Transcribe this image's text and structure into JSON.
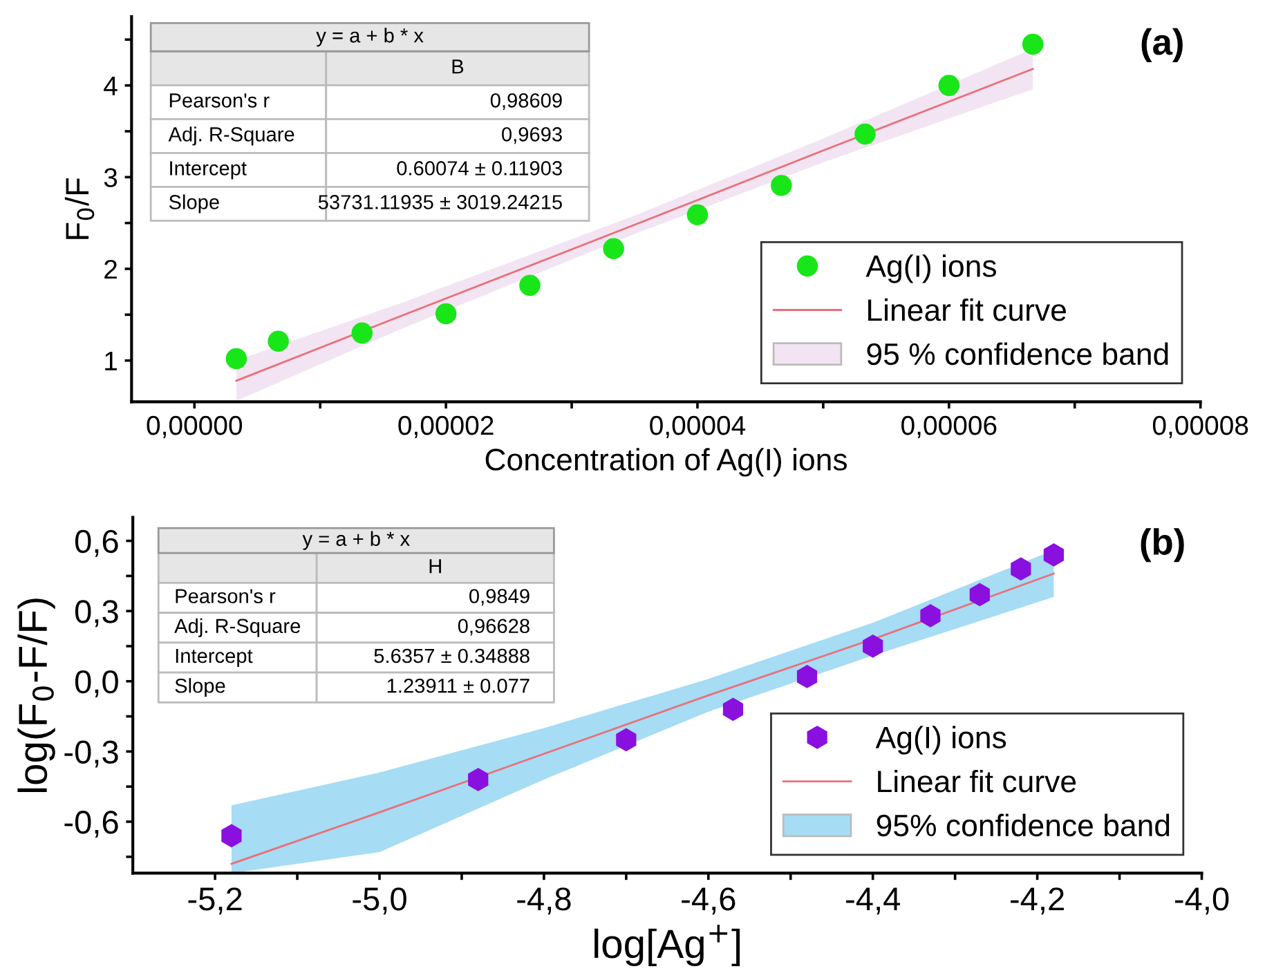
{
  "chart_data": [
    {
      "type": "scatter",
      "xlabel": "Concentration of Ag(I) ions",
      "ylabel": "F$_{0}$/F",
      "annotations": [
        "(a)",
        "y = a + b * x",
        "B",
        "Pearson's r",
        "0,98609",
        "Adj. R-Square",
        "0,9693",
        "Intercept",
        "0.60074 ± 0.11903",
        "Slope",
        "53731.11935 ± 3019.24215"
      ],
      "xlim": [
        -5e-06,
        8e-05
      ],
      "ylim": [
        0.55,
        4.75
      ],
      "xticks": [
        {
          "value": 0,
          "label": "0,00000"
        },
        {
          "value": 1e-05,
          "label": null
        },
        {
          "value": 2e-05,
          "label": "0,00002"
        },
        {
          "value": 3e-05,
          "label": null
        },
        {
          "value": 4e-05,
          "label": "0,00004"
        },
        {
          "value": 5e-05,
          "label": null
        },
        {
          "value": 6e-05,
          "label": "0,00006"
        },
        {
          "value": 7e-05,
          "label": null
        },
        {
          "value": 8e-05,
          "label": "0,00008"
        }
      ],
      "yticks": [
        1,
        {
          "value": 1.5,
          "label": null
        },
        2,
        {
          "value": 2.5,
          "label": null
        },
        3,
        {
          "value": 3.5,
          "label": null
        },
        4,
        {
          "value": 4.5,
          "label": null
        }
      ],
      "legend": "bottom right",
      "series": [
        {
          "type": "area",
          "name": "95 % confidence band",
          "color": "#f2e4f2"
        },
        {
          "type": "line",
          "name": "Linear fit curve",
          "color": "#e8707a",
          "line_style": "solid",
          "x": [
            3.33e-06,
            1.67e-05,
            3.5e-05,
            5e-05,
            6.667e-05
          ],
          "values": [
            0.78,
            1.5,
            2.48,
            3.29,
            4.18
          ],
          "lower": [
            0.56,
            1.36,
            2.38,
            3.16,
            3.96
          ],
          "upper": [
            1.0,
            1.64,
            2.58,
            3.42,
            4.4
          ]
        },
        {
          "type": "scatter",
          "name": "Ag(I) ions",
          "color": "#19e619",
          "marker": "circle",
          "x": [
            3.33e-06,
            6.67e-06,
            1.333e-05,
            2e-05,
            2.667e-05,
            3.333e-05,
            4e-05,
            4.667e-05,
            5.333e-05,
            6e-05,
            6.667e-05
          ],
          "values": [
            1.02,
            1.21,
            1.3,
            1.51,
            1.82,
            2.22,
            2.59,
            2.91,
            3.47,
            4.0,
            4.45
          ]
        }
      ]
    },
    {
      "type": "scatter",
      "xlabel": "log[Ag$^{+}$]",
      "ylabel": "log(F$_{0}$-F/F)",
      "annotations": [
        "(b)",
        "y = a + b * x",
        "H",
        "Pearson's r",
        "0,9849",
        "Adj. R-Square",
        "0,96628",
        "Intercept",
        "5.6357 ± 0.34888",
        "Slope",
        "1.23911 ± 0.077"
      ],
      "xlim": [
        -5.3,
        -4.0
      ],
      "ylim": [
        -0.82,
        0.7
      ],
      "xticks": [
        {
          "value": -5.2,
          "label": "-5,2"
        },
        {
          "value": -5.1,
          "label": null
        },
        {
          "value": -5.0,
          "label": "-5,0"
        },
        {
          "value": -4.9,
          "label": null
        },
        {
          "value": -4.8,
          "label": "-4,8"
        },
        {
          "value": -4.7,
          "label": null
        },
        {
          "value": -4.6,
          "label": "-4,6"
        },
        {
          "value": -4.5,
          "label": null
        },
        {
          "value": -4.4,
          "label": "-4,4"
        },
        {
          "value": -4.3,
          "label": null
        },
        {
          "value": -4.2,
          "label": "-4,2"
        },
        {
          "value": -4.1,
          "label": null
        },
        {
          "value": -4.0,
          "label": "-4,0"
        }
      ],
      "yticks": [
        {
          "value": -0.75,
          "label": null
        },
        {
          "value": -0.6,
          "label": "-0,6"
        },
        {
          "value": -0.45,
          "label": null
        },
        {
          "value": -0.3,
          "label": "-0,3"
        },
        {
          "value": -0.15,
          "label": null
        },
        {
          "value": 0.0,
          "label": "0,0"
        },
        {
          "value": 0.15,
          "label": null
        },
        {
          "value": 0.3,
          "label": "0,3"
        },
        {
          "value": 0.45,
          "label": null
        },
        {
          "value": 0.6,
          "label": "0,6"
        }
      ],
      "legend": "bottom right",
      "series": [
        {
          "type": "area",
          "name": "95% confidence band",
          "color": "#a6dcf4"
        },
        {
          "type": "line",
          "name": "Linear fit curve",
          "color": "#e8707a",
          "line_style": "solid",
          "x": [
            -5.18,
            -5.0,
            -4.8,
            -4.6,
            -4.4,
            -4.18
          ],
          "values": [
            -0.78,
            -0.56,
            -0.31,
            -0.06,
            0.18,
            0.46
          ],
          "lower": [
            -0.82,
            -0.73,
            -0.42,
            -0.13,
            0.11,
            0.36
          ],
          "upper": [
            -0.53,
            -0.39,
            -0.2,
            0.01,
            0.25,
            0.56
          ]
        },
        {
          "type": "scatter",
          "name": "Ag(I) ions",
          "color": "#8a10e0",
          "x": [
            -5.18,
            -4.88,
            -4.7,
            -4.57,
            -4.48,
            -4.4,
            -4.33,
            -4.27,
            -4.22,
            -4.18
          ],
          "values": [
            -0.66,
            -0.42,
            -0.25,
            -0.12,
            0.02,
            0.15,
            0.28,
            0.37,
            0.48,
            0.54
          ]
        }
      ]
    }
  ]
}
